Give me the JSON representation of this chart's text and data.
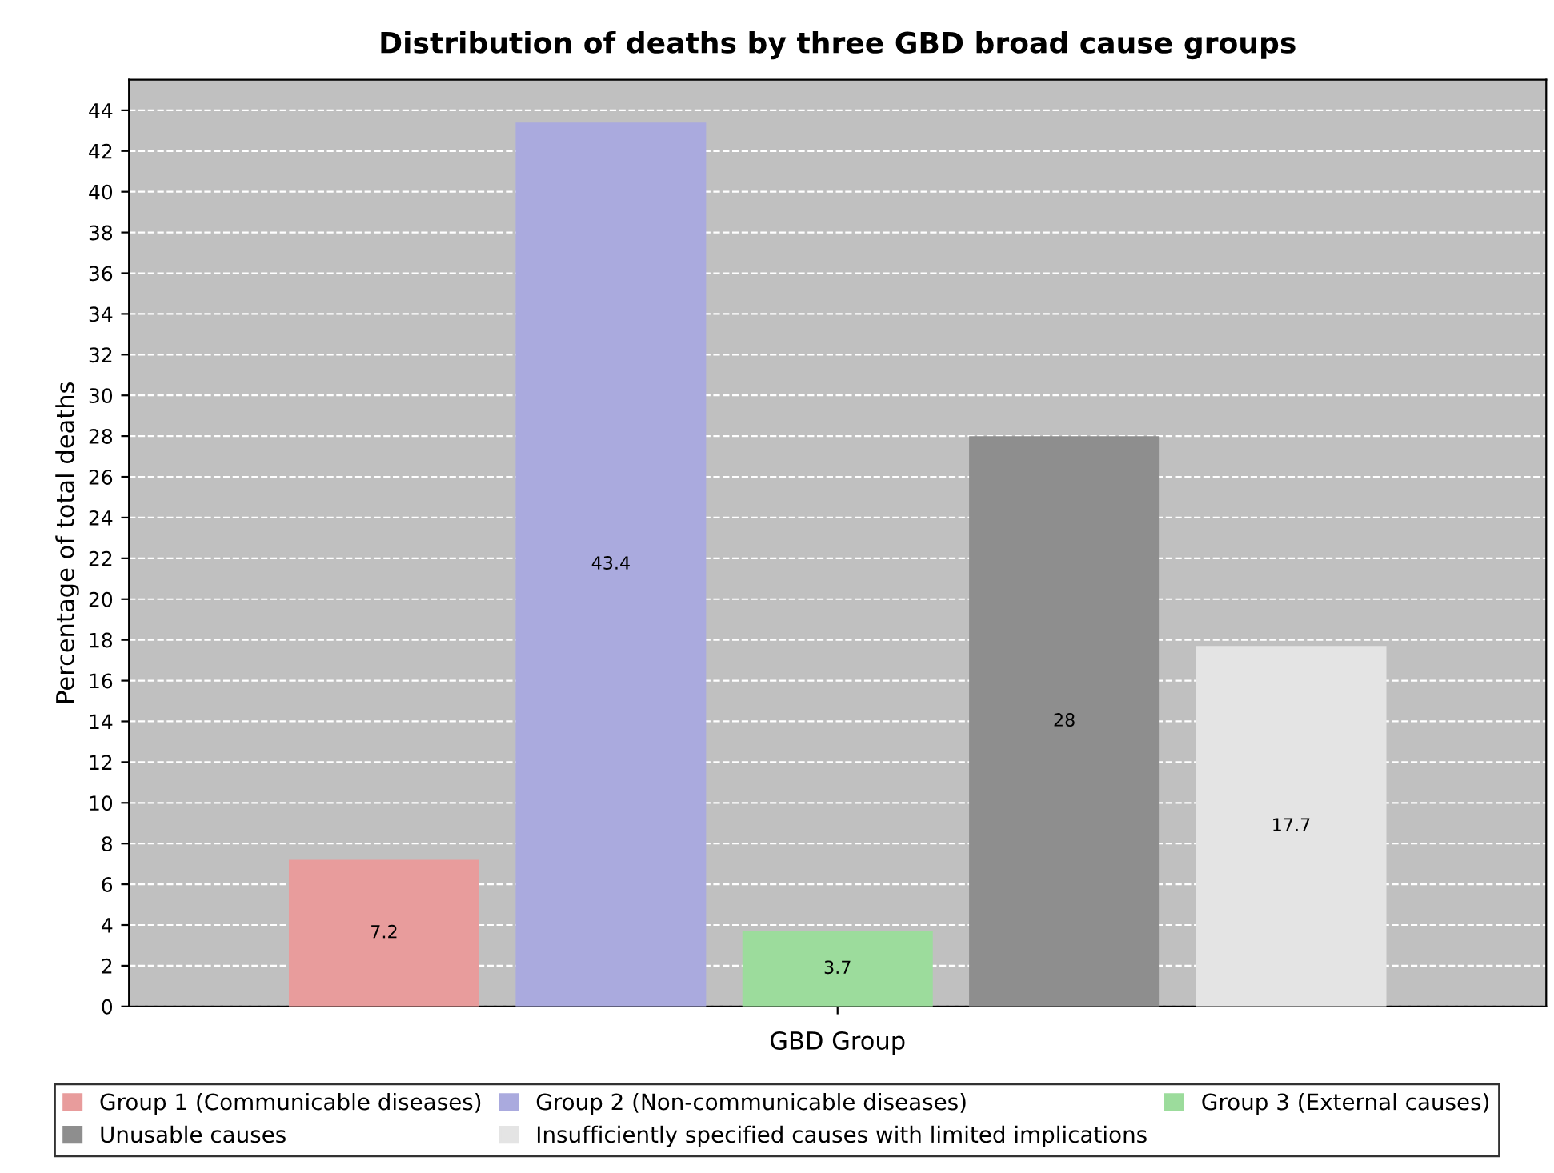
{
  "chart_data": {
    "type": "bar",
    "title": "Distribution of deaths by three GBD broad cause groups",
    "xlabel": "GBD Group",
    "ylabel": "Percentage of total deaths",
    "categories": [
      null
    ],
    "series": [
      {
        "name": "Group 1 (Communicable diseases)",
        "color": "#e89c9c",
        "values": [
          7.2
        ]
      },
      {
        "name": "Group 2 (Non-communicable diseases)",
        "color": "#aaaade",
        "values": [
          43.4
        ]
      },
      {
        "name": "Group 3 (External causes)",
        "color": "#9cdc9c",
        "values": [
          3.7
        ]
      },
      {
        "name": "Unusable causes",
        "color": "#8e8e8e",
        "values": [
          28
        ]
      },
      {
        "name": "Insufficiently specified causes with limited implications",
        "color": "#e4e4e4",
        "values": [
          17.7
        ]
      }
    ],
    "ylim": [
      0,
      45.5
    ],
    "yticks": [
      0,
      2,
      4,
      6,
      8,
      10,
      12,
      14,
      16,
      18,
      20,
      22,
      24,
      26,
      28,
      30,
      32,
      34,
      36,
      38,
      40,
      42,
      44
    ],
    "grid": "y",
    "legend": "bottom",
    "data_labels": true
  }
}
